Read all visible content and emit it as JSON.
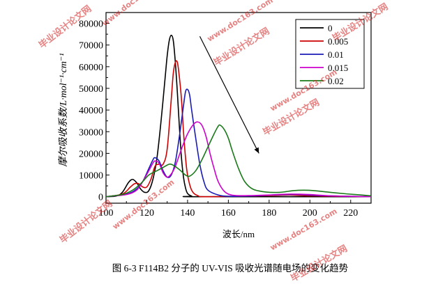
{
  "chart_data": {
    "type": "line",
    "title": "",
    "xlabel": "波长/nm",
    "ylabel": "摩尔吸收系数/L·mol⁻¹·cm⁻¹",
    "xlim": [
      100,
      230
    ],
    "ylim": [
      -3000,
      85000
    ],
    "x_ticks": [
      "100",
      "120",
      "140",
      "160",
      "180",
      "200",
      "220"
    ],
    "y_ticks": [
      "0",
      "10000",
      "20000",
      "30000",
      "40000",
      "50000",
      "60000",
      "70000",
      "80000"
    ],
    "legend_position": "top-right",
    "series": [
      {
        "name": "0",
        "color": "#000000",
        "points": [
          [
            100,
            0
          ],
          [
            105,
            300
          ],
          [
            108,
            2000
          ],
          [
            111,
            6500
          ],
          [
            113,
            8000
          ],
          [
            115,
            6500
          ],
          [
            117,
            3500
          ],
          [
            119,
            2000
          ],
          [
            121,
            2800
          ],
          [
            123,
            8000
          ],
          [
            125,
            18000
          ],
          [
            127,
            35000
          ],
          [
            129,
            55000
          ],
          [
            130,
            65000
          ],
          [
            131,
            72000
          ],
          [
            132,
            74500
          ],
          [
            133,
            72000
          ],
          [
            134,
            62000
          ],
          [
            135,
            48000
          ],
          [
            136,
            32000
          ],
          [
            137,
            18000
          ],
          [
            138,
            9000
          ],
          [
            139,
            4000
          ],
          [
            140,
            1500
          ],
          [
            142,
            300
          ],
          [
            145,
            0
          ],
          [
            230,
            0
          ]
        ]
      },
      {
        "name": "0.005",
        "color": "#cc0000",
        "points": [
          [
            100,
            0
          ],
          [
            108,
            1200
          ],
          [
            112,
            4500
          ],
          [
            114,
            6000
          ],
          [
            116,
            6000
          ],
          [
            118,
            4500
          ],
          [
            120,
            4500
          ],
          [
            122,
            8000
          ],
          [
            124,
            14000
          ],
          [
            126,
            15000
          ],
          [
            128,
            15000
          ],
          [
            130,
            22000
          ],
          [
            132,
            45000
          ],
          [
            133,
            57000
          ],
          [
            134,
            62000
          ],
          [
            135,
            62000
          ],
          [
            136,
            55000
          ],
          [
            137,
            45000
          ],
          [
            138,
            30000
          ],
          [
            139,
            18000
          ],
          [
            140,
            10000
          ],
          [
            142,
            3000
          ],
          [
            145,
            500
          ],
          [
            150,
            0
          ],
          [
            180,
            500
          ],
          [
            190,
            800
          ],
          [
            200,
            400
          ],
          [
            230,
            0
          ]
        ]
      },
      {
        "name": "0.01",
        "color": "#1a1ab4",
        "points": [
          [
            100,
            0
          ],
          [
            110,
            1200
          ],
          [
            115,
            3500
          ],
          [
            118,
            7000
          ],
          [
            121,
            13000
          ],
          [
            123,
            17000
          ],
          [
            124,
            18000
          ],
          [
            126,
            16500
          ],
          [
            128,
            12000
          ],
          [
            130,
            9000
          ],
          [
            132,
            10000
          ],
          [
            134,
            16000
          ],
          [
            136,
            28000
          ],
          [
            138,
            42000
          ],
          [
            139,
            48500
          ],
          [
            140,
            49500
          ],
          [
            141,
            47000
          ],
          [
            142,
            40000
          ],
          [
            144,
            27000
          ],
          [
            146,
            15000
          ],
          [
            148,
            7000
          ],
          [
            150,
            3000
          ],
          [
            155,
            800
          ],
          [
            160,
            200
          ],
          [
            170,
            300
          ],
          [
            185,
            900
          ],
          [
            195,
            1000
          ],
          [
            205,
            500
          ],
          [
            230,
            0
          ]
        ]
      },
      {
        "name": "0.015",
        "color": "#cc00cc",
        "points": [
          [
            100,
            0
          ],
          [
            110,
            1000
          ],
          [
            115,
            3000
          ],
          [
            118,
            7000
          ],
          [
            121,
            12000
          ],
          [
            123,
            15500
          ],
          [
            124,
            16500
          ],
          [
            126,
            15500
          ],
          [
            128,
            11000
          ],
          [
            130,
            9000
          ],
          [
            132,
            10500
          ],
          [
            134,
            14000
          ],
          [
            137,
            22000
          ],
          [
            140,
            29000
          ],
          [
            143,
            33500
          ],
          [
            145,
            34500
          ],
          [
            147,
            33000
          ],
          [
            149,
            28000
          ],
          [
            151,
            20000
          ],
          [
            153,
            13000
          ],
          [
            155,
            7000
          ],
          [
            158,
            2500
          ],
          [
            162,
            700
          ],
          [
            170,
            500
          ],
          [
            180,
            800
          ],
          [
            190,
            1200
          ],
          [
            200,
            1000
          ],
          [
            210,
            400
          ],
          [
            230,
            0
          ]
        ]
      },
      {
        "name": "0.02",
        "color": "#1a7a1a",
        "points": [
          [
            100,
            0
          ],
          [
            108,
            1000
          ],
          [
            113,
            3000
          ],
          [
            117,
            6000
          ],
          [
            121,
            10000
          ],
          [
            125,
            12000
          ],
          [
            128,
            13500
          ],
          [
            131,
            15000
          ],
          [
            133,
            14500
          ],
          [
            136,
            12500
          ],
          [
            139,
            10000
          ],
          [
            141,
            9500
          ],
          [
            144,
            12000
          ],
          [
            147,
            17000
          ],
          [
            150,
            23000
          ],
          [
            153,
            29000
          ],
          [
            155,
            32500
          ],
          [
            156,
            33000
          ],
          [
            158,
            31000
          ],
          [
            160,
            27000
          ],
          [
            162,
            21000
          ],
          [
            165,
            13000
          ],
          [
            168,
            7000
          ],
          [
            172,
            3500
          ],
          [
            178,
            2200
          ],
          [
            185,
            2000
          ],
          [
            192,
            2800
          ],
          [
            197,
            3000
          ],
          [
            202,
            2800
          ],
          [
            210,
            2000
          ],
          [
            218,
            1300
          ],
          [
            225,
            800
          ],
          [
            230,
            400
          ]
        ]
      }
    ],
    "annotations": [
      {
        "type": "arrow",
        "from": [
          146,
          74000
        ],
        "to": [
          175,
          20000
        ]
      }
    ]
  },
  "caption": "图 6-3 F114B2 分子的 UV-VIS 吸收光谱随电场的变化趋势",
  "watermarks": [
    "毕业设计论文网",
    "www.doc163.com"
  ]
}
